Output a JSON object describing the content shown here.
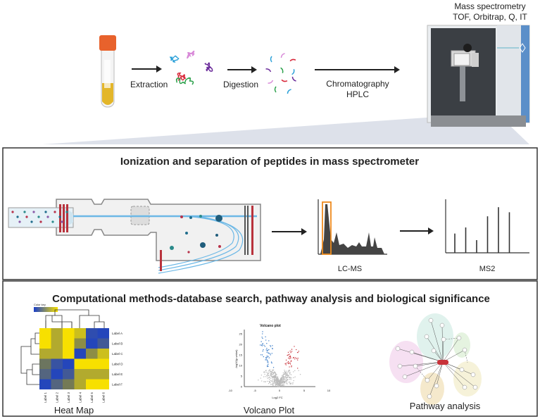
{
  "top": {
    "ms_title_line1": "Mass spectrometry",
    "ms_title_line2": "TOF, Orbitrap, Q, IT",
    "step_extraction": "Extraction",
    "step_digestion": "Digestion",
    "step_chromatography": "Chromatography",
    "step_hplc": "HPLC"
  },
  "panel2": {
    "title": "Ionization and separation of peptides in mass spectrometer",
    "lcms_label": "LC-MS",
    "ms2_label": "MS2",
    "ms2_peaks": [
      0.38,
      0.5,
      0.25,
      0.72,
      0.9,
      0.8
    ]
  },
  "panel3": {
    "title": "Computational methods-database search, pathway analysis and biological significance",
    "heatmap": {
      "caption": "Heat Map",
      "color_key": "Color key",
      "row_labels": [
        "Label A",
        "Label B",
        "Label C",
        "Label D",
        "Label E",
        "Label F"
      ],
      "col_labels": [
        "Label 1",
        "Label 2",
        "Label 3",
        "Label 4",
        "Label 5",
        "Label 6"
      ],
      "values": [
        [
          1.0,
          0.75,
          1.0,
          0.85,
          0.1,
          0.05
        ],
        [
          1.0,
          0.75,
          1.0,
          0.6,
          0.05,
          0.2
        ],
        [
          0.75,
          0.75,
          1.0,
          0.05,
          0.6,
          0.85
        ],
        [
          0.45,
          0.15,
          0.05,
          1.0,
          1.0,
          1.0
        ],
        [
          0.3,
          0.05,
          0.2,
          0.75,
          0.75,
          0.75
        ],
        [
          0.05,
          0.3,
          0.5,
          0.75,
          1.0,
          1.0
        ]
      ],
      "colors": {
        "low": "#1a3fc8",
        "high": "#f7e000"
      }
    },
    "volcano": {
      "caption": "Volcano Plot",
      "title": "Volcano plot",
      "xlabel": "Log2 FC",
      "ylabel": "-log10(p-value)",
      "x_ticks": [
        "-10",
        "-5",
        "0",
        "5",
        "10"
      ],
      "y_ticks": [
        "0",
        "5",
        "10",
        "15",
        "20",
        "25"
      ],
      "colors": {
        "down": "#3a7cc8",
        "up": "#c8323a",
        "ns": "#bbbbbb"
      }
    },
    "pathway": {
      "caption": "Pathway analysis"
    }
  }
}
